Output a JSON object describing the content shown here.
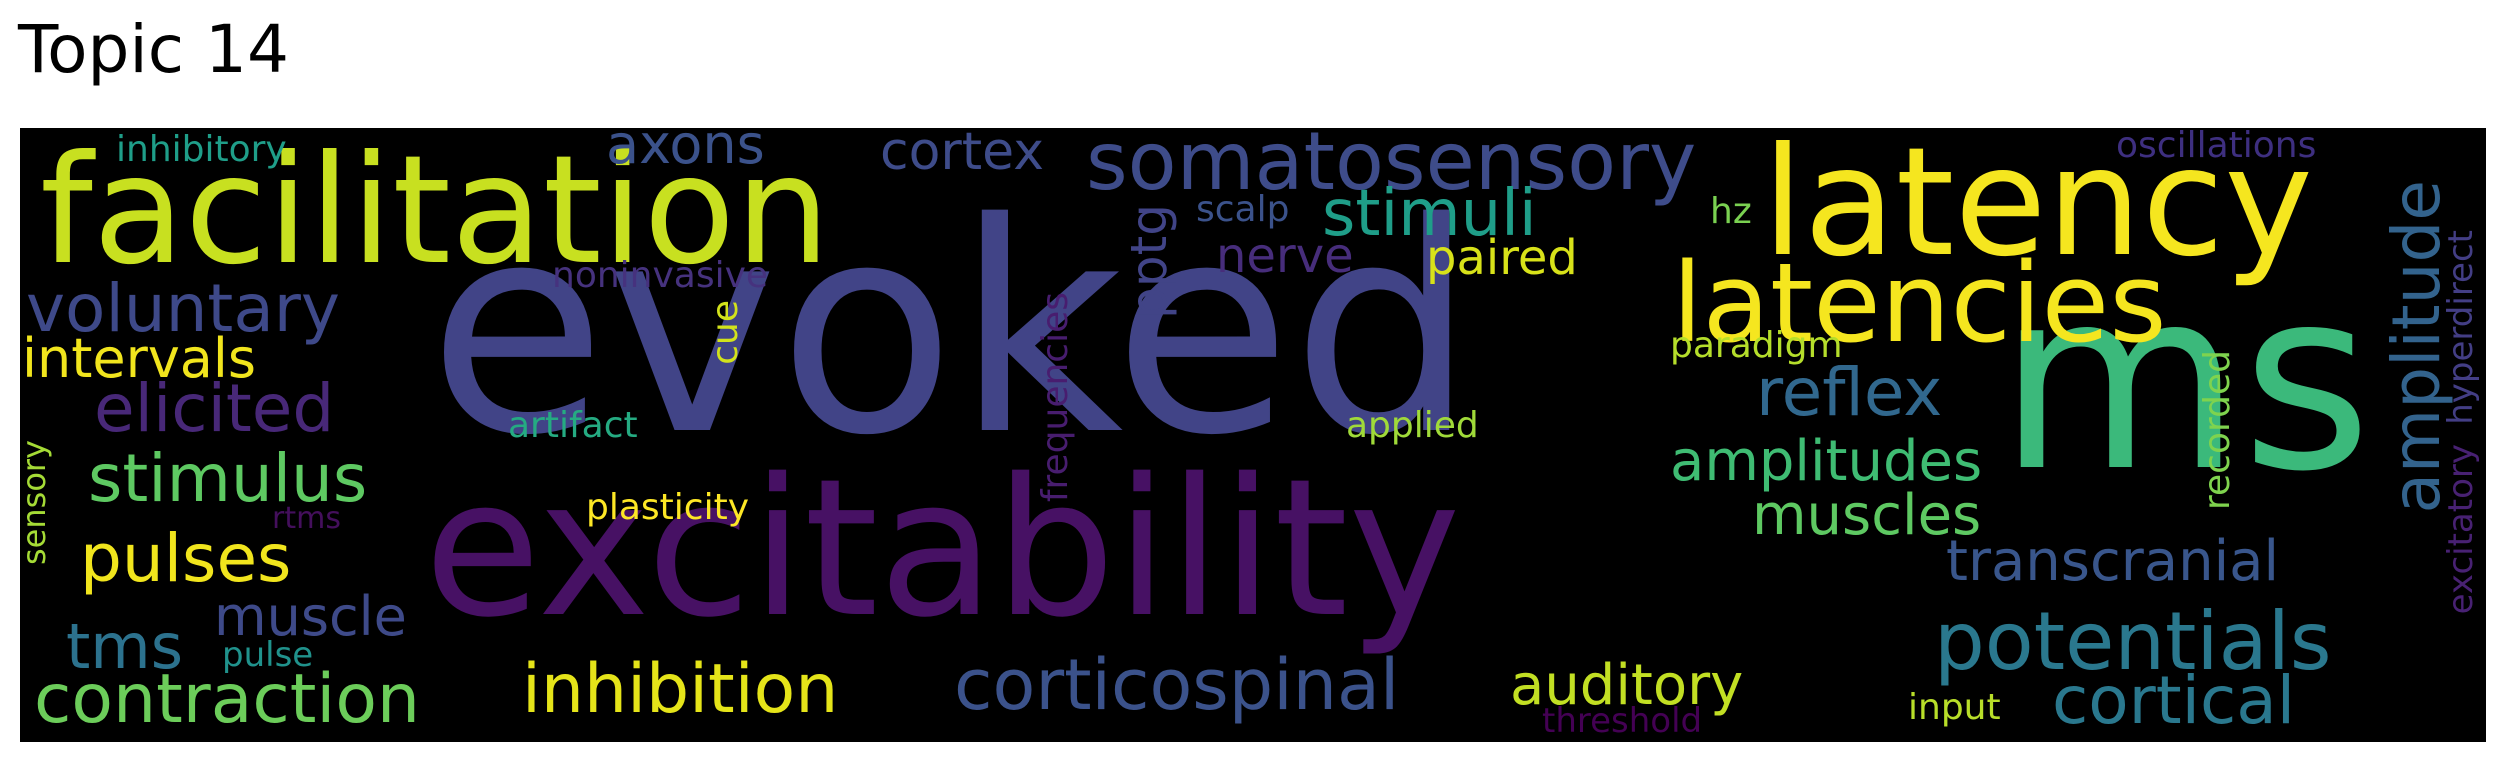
{
  "title": "Topic 14",
  "words": {
    "evoked": {
      "text": "evoked",
      "color": "#414487"
    },
    "ms": {
      "text": "ms",
      "color": "#3bb97b"
    },
    "excitability": {
      "text": "excitability",
      "color": "#471164"
    },
    "facilitation": {
      "text": "facilitation",
      "color": "#c8e020"
    },
    "latency": {
      "text": "latency",
      "color": "#f5e61f"
    },
    "latencies": {
      "text": "latencies",
      "color": "#f5e61f"
    },
    "somatosensory": {
      "text": "somatosensory",
      "color": "#3e4c8a"
    },
    "corticospinal": {
      "text": "corticospinal",
      "color": "#3b528b"
    },
    "potentials": {
      "text": "potentials",
      "color": "#2a788e"
    },
    "contraction": {
      "text": "contraction",
      "color": "#6ccd5a"
    },
    "inhibition": {
      "text": "inhibition",
      "color": "#e5e419"
    },
    "cortical": {
      "text": "cortical",
      "color": "#2a788e"
    },
    "voluntary": {
      "text": "voluntary",
      "color": "#3e4989"
    },
    "amplitude": {
      "text": "amplitude",
      "color": "#33638d"
    },
    "stimulus": {
      "text": "stimulus",
      "color": "#5ec962"
    },
    "elicited": {
      "text": "elicited",
      "color": "#482878"
    },
    "pulses": {
      "text": "pulses",
      "color": "#f1e51d"
    },
    "reflex": {
      "text": "reflex",
      "color": "#31688e"
    },
    "amplitudes": {
      "text": "amplitudes",
      "color": "#3fbc73"
    },
    "transcranial": {
      "text": "transcranial",
      "color": "#39568c"
    },
    "stimuli": {
      "text": "stimuli",
      "color": "#1f9e89"
    },
    "auditory": {
      "text": "auditory",
      "color": "#c2df23"
    },
    "muscles": {
      "text": "muscles",
      "color": "#5ec962"
    },
    "intervals": {
      "text": "intervals",
      "color": "#f1e51d"
    },
    "muscle": {
      "text": "muscle",
      "color": "#3e4a89"
    },
    "tms": {
      "text": "tms",
      "color": "#2c728e"
    },
    "axons": {
      "text": "axons",
      "color": "#3b528b"
    },
    "cortex": {
      "text": "cortex",
      "color": "#3e4c8a"
    },
    "paired": {
      "text": "paired",
      "color": "#d8e219"
    },
    "nerve": {
      "text": "nerve",
      "color": "#472d7b"
    },
    "pptg": {
      "text": "pptg",
      "color": "#414487"
    },
    "inhibitory": {
      "text": "inhibitory",
      "color": "#1f9e89"
    },
    "oscillations": {
      "text": "oscillations",
      "color": "#3e2f80"
    },
    "noninvasive": {
      "text": "noninvasive",
      "color": "#46327e"
    },
    "scalp": {
      "text": "scalp",
      "color": "#3b528b"
    },
    "hz": {
      "text": "hz",
      "color": "#7ad151"
    },
    "hyperdirect": {
      "text": "hyperdirect",
      "color": "#433e85"
    },
    "excitatory": {
      "text": "excitatory",
      "color": "#482173"
    },
    "paradigm": {
      "text": "paradigm",
      "color": "#b5de2b"
    },
    "artifact": {
      "text": "artifact",
      "color": "#25ab82"
    },
    "applied": {
      "text": "applied",
      "color": "#a0da39"
    },
    "frequencies": {
      "text": "frequencies",
      "color": "#481d6f"
    },
    "cue": {
      "text": "cue",
      "color": "#d2e21b"
    },
    "recorded": {
      "text": "recorded",
      "color": "#7fd34e"
    },
    "plasticity": {
      "text": "plasticity",
      "color": "#fde725"
    },
    "rtms": {
      "text": "rtms",
      "color": "#440f5c"
    },
    "sensory": {
      "text": "sensory",
      "color": "#a5db36"
    },
    "pulse": {
      "text": "pulse",
      "color": "#20928c"
    },
    "threshold": {
      "text": "threshold",
      "color": "#440154"
    },
    "input": {
      "text": "input",
      "color": "#b8de29"
    }
  }
}
